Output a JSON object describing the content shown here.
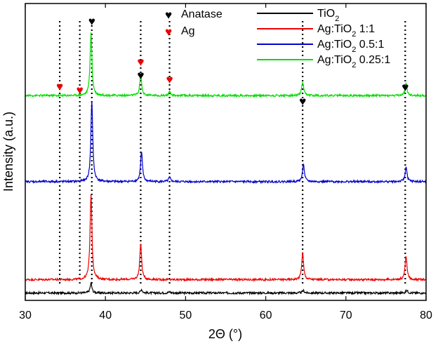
{
  "chart_data": {
    "type": "line",
    "xlabel": "2Θ (°)",
    "ylabel": "Intensity (a.u.)",
    "xlim": [
      30,
      80
    ],
    "ylim": [
      0,
      100
    ],
    "x_ticks": [
      30,
      40,
      50,
      60,
      70,
      80
    ],
    "x_tick_labels": [
      "30",
      "40",
      "50",
      "60",
      "70",
      "80"
    ],
    "colors": {
      "black": "#000000",
      "red": "#ee0000",
      "blue": "#0000cc",
      "green": "#00dd00"
    },
    "marker_legend": [
      {
        "label": "Anatase",
        "glyph": "♥",
        "color": "#000000"
      },
      {
        "label": "Ag",
        "glyph": "♥",
        "color": "#ee0000"
      }
    ],
    "series": [
      {
        "name": "TiO2",
        "legend": {
          "main": "TiO",
          "sub": "2",
          "suffix": ""
        },
        "color": "#000000",
        "baseline": 2.5,
        "peaks": [
          [
            38.2,
            3.2
          ],
          [
            44.5,
            1.2
          ],
          [
            48.0,
            0.4
          ],
          [
            64.7,
            0.8
          ],
          [
            77.6,
            0.9
          ]
        ]
      },
      {
        "name": "Ag:TiO2 1:1",
        "legend": {
          "main": "Ag:TiO",
          "sub": "2",
          "suffix": " 1:1"
        },
        "color": "#ee0000",
        "baseline": 7,
        "peaks": [
          [
            38.2,
            29
          ],
          [
            44.4,
            12
          ],
          [
            64.6,
            9
          ],
          [
            77.5,
            8
          ]
        ]
      },
      {
        "name": "Ag:TiO2 0.5:1",
        "legend": {
          "main": "Ag:TiO",
          "sub": "2",
          "suffix": " 0.5:1"
        },
        "color": "#0000cc",
        "baseline": 40,
        "peaks": [
          [
            38.3,
            27
          ],
          [
            44.5,
            10
          ],
          [
            48.0,
            1.5
          ],
          [
            64.7,
            6
          ],
          [
            77.5,
            5
          ]
        ]
      },
      {
        "name": "Ag:TiO2 0.25:1",
        "legend": {
          "main": "Ag:TiO",
          "sub": "2",
          "suffix": " 0.25:1"
        },
        "color": "#00dd00",
        "baseline": 69,
        "peaks": [
          [
            38.2,
            21
          ],
          [
            44.4,
            7
          ],
          [
            48.0,
            1.2
          ],
          [
            64.6,
            4.5
          ],
          [
            77.5,
            4
          ]
        ]
      }
    ],
    "anatase_markers": [
      {
        "x": 38.3,
        "label": "♥"
      },
      {
        "x": 44.4,
        "label": "♥"
      },
      {
        "x": 64.6,
        "label": "♥"
      },
      {
        "x": 77.4,
        "label": "♥"
      }
    ],
    "ag_markers": [
      {
        "x": 34.3,
        "label": "♥"
      },
      {
        "x": 36.8,
        "label": "♥"
      },
      {
        "x": 44.4,
        "label": "♥"
      },
      {
        "x": 48.0,
        "label": "♥"
      }
    ],
    "reference_lines": [
      34.3,
      36.8,
      38.3,
      44.4,
      48.0,
      64.6,
      77.4
    ]
  }
}
